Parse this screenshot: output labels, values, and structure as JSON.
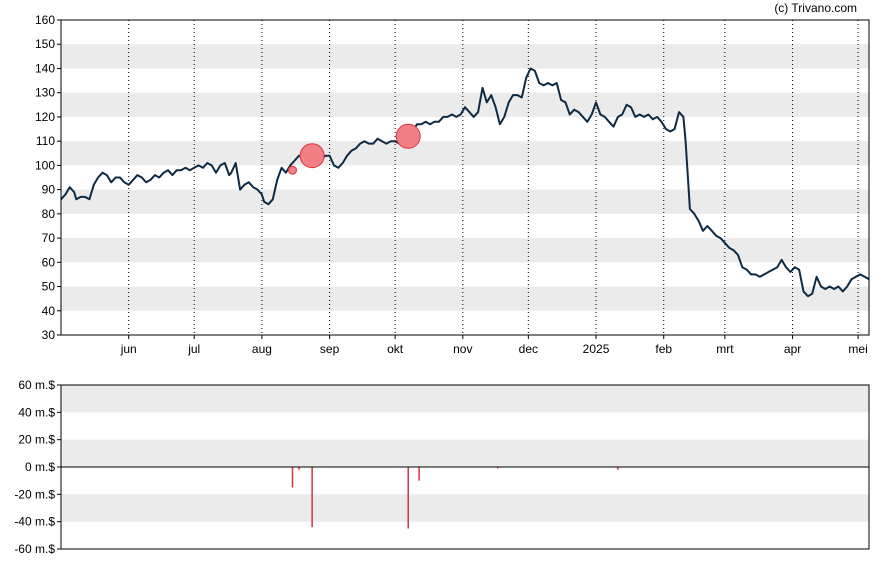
{
  "credit": "(c) Trivano.com",
  "colors": {
    "price_line": "#0d2b45",
    "marker_fill": "#f07f86",
    "marker_stroke": "#e0303a",
    "volume_bar": "#e0303a",
    "band": "#ebebeb",
    "frame": "#000000"
  },
  "chart_data": [
    {
      "type": "line",
      "title": "",
      "grid": true,
      "ylim": [
        30,
        160
      ],
      "yticks": [
        "30",
        "40",
        "50",
        "60",
        "70",
        "80",
        "90",
        "100",
        "110",
        "120",
        "130",
        "140",
        "150",
        "160"
      ],
      "months": [
        {
          "label": "jun",
          "day": 31
        },
        {
          "label": "jul",
          "day": 61
        },
        {
          "label": "aug",
          "day": 92
        },
        {
          "label": "sep",
          "day": 123
        },
        {
          "label": "okt",
          "day": 153
        },
        {
          "label": "nov",
          "day": 184
        },
        {
          "label": "dec",
          "day": 214
        },
        {
          "label": "2025",
          "day": 245
        },
        {
          "label": "feb",
          "day": 276
        },
        {
          "label": "mrt",
          "day": 304
        },
        {
          "label": "apr",
          "day": 335
        },
        {
          "label": "mei",
          "day": 365
        }
      ],
      "series": [
        {
          "points": [
            [
              0,
              86
            ],
            [
              2,
              88
            ],
            [
              4,
              91
            ],
            [
              6,
              89
            ],
            [
              7,
              86
            ],
            [
              9,
              87
            ],
            [
              11,
              87
            ],
            [
              13,
              86
            ],
            [
              15,
              92
            ],
            [
              17,
              95
            ],
            [
              19,
              97
            ],
            [
              21,
              96
            ],
            [
              23,
              93
            ],
            [
              25,
              95
            ],
            [
              27,
              95
            ],
            [
              29,
              93
            ],
            [
              31,
              92
            ],
            [
              33,
              94
            ],
            [
              35,
              96
            ],
            [
              37,
              95
            ],
            [
              39,
              93
            ],
            [
              41,
              94
            ],
            [
              43,
              96
            ],
            [
              45,
              95
            ],
            [
              47,
              97
            ],
            [
              49,
              98
            ],
            [
              51,
              96
            ],
            [
              53,
              98
            ],
            [
              55,
              98
            ],
            [
              57,
              99
            ],
            [
              59,
              98
            ],
            [
              61,
              99
            ],
            [
              63,
              100
            ],
            [
              65,
              99
            ],
            [
              67,
              101
            ],
            [
              69,
              100
            ],
            [
              71,
              97
            ],
            [
              73,
              100
            ],
            [
              75,
              101
            ],
            [
              77,
              96
            ],
            [
              78,
              97
            ],
            [
              80,
              101
            ],
            [
              82,
              90
            ],
            [
              84,
              92
            ],
            [
              86,
              93
            ],
            [
              88,
              91
            ],
            [
              90,
              90
            ],
            [
              92,
              88
            ],
            [
              93,
              85
            ],
            [
              95,
              84
            ],
            [
              97,
              86
            ],
            [
              99,
              94
            ],
            [
              101,
              99
            ],
            [
              103,
              97
            ],
            [
              105,
              100
            ],
            [
              107,
              102
            ],
            [
              109,
              104
            ],
            [
              111,
              103
            ],
            [
              113,
              105
            ],
            [
              115,
              104
            ],
            [
              117,
              103
            ],
            [
              119,
              102
            ],
            [
              121,
              104
            ],
            [
              123,
              104
            ],
            [
              125,
              100
            ],
            [
              127,
              99
            ],
            [
              129,
              101
            ],
            [
              131,
              104
            ],
            [
              133,
              106
            ],
            [
              135,
              107
            ],
            [
              137,
              109
            ],
            [
              139,
              110
            ],
            [
              141,
              109
            ],
            [
              143,
              109
            ],
            [
              145,
              111
            ],
            [
              147,
              110
            ],
            [
              149,
              109
            ],
            [
              151,
              110
            ],
            [
              153,
              110
            ],
            [
              155,
              109
            ],
            [
              157,
              112
            ],
            [
              159,
              113
            ],
            [
              161,
              114
            ],
            [
              163,
              117
            ],
            [
              165,
              117
            ],
            [
              167,
              118
            ],
            [
              169,
              117
            ],
            [
              171,
              118
            ],
            [
              173,
              118
            ],
            [
              175,
              120
            ],
            [
              177,
              120
            ],
            [
              179,
              121
            ],
            [
              181,
              120
            ],
            [
              183,
              121
            ],
            [
              185,
              124
            ],
            [
              187,
              122
            ],
            [
              189,
              120
            ],
            [
              191,
              122
            ],
            [
              193,
              132
            ],
            [
              195,
              126
            ],
            [
              197,
              129
            ],
            [
              199,
              124
            ],
            [
              201,
              117
            ],
            [
              203,
              120
            ],
            [
              205,
              126
            ],
            [
              207,
              129
            ],
            [
              209,
              129
            ],
            [
              211,
              128
            ],
            [
              213,
              136
            ],
            [
              215,
              140
            ],
            [
              217,
              139
            ],
            [
              219,
              134
            ],
            [
              221,
              133
            ],
            [
              223,
              134
            ],
            [
              225,
              133
            ],
            [
              227,
              134
            ],
            [
              229,
              127
            ],
            [
              231,
              126
            ],
            [
              233,
              121
            ],
            [
              235,
              123
            ],
            [
              237,
              122
            ],
            [
              239,
              120
            ],
            [
              241,
              118
            ],
            [
              243,
              121
            ],
            [
              245,
              126
            ],
            [
              247,
              121
            ],
            [
              249,
              120
            ],
            [
              251,
              118
            ],
            [
              253,
              116
            ],
            [
              255,
              120
            ],
            [
              257,
              121
            ],
            [
              259,
              125
            ],
            [
              261,
              124
            ],
            [
              263,
              120
            ],
            [
              265,
              121
            ],
            [
              267,
              120
            ],
            [
              269,
              121
            ],
            [
              271,
              119
            ],
            [
              273,
              120
            ],
            [
              275,
              118
            ],
            [
              277,
              115
            ],
            [
              279,
              114
            ],
            [
              281,
              115
            ],
            [
              283,
              122
            ],
            [
              285,
              120
            ],
            [
              286,
              110
            ],
            [
              288,
              82
            ],
            [
              290,
              80
            ],
            [
              292,
              77
            ],
            [
              294,
              73
            ],
            [
              296,
              75
            ],
            [
              298,
              73
            ],
            [
              300,
              71
            ],
            [
              302,
              70
            ],
            [
              304,
              68
            ],
            [
              306,
              66
            ],
            [
              308,
              65
            ],
            [
              310,
              63
            ],
            [
              312,
              58
            ],
            [
              314,
              57
            ],
            [
              316,
              55
            ],
            [
              318,
              55
            ],
            [
              320,
              54
            ],
            [
              322,
              55
            ],
            [
              324,
              56
            ],
            [
              326,
              57
            ],
            [
              328,
              58
            ],
            [
              330,
              61
            ],
            [
              332,
              58
            ],
            [
              334,
              56
            ],
            [
              336,
              58
            ],
            [
              338,
              57
            ],
            [
              340,
              48
            ],
            [
              342,
              46
            ],
            [
              344,
              47
            ],
            [
              346,
              54
            ],
            [
              348,
              50
            ],
            [
              350,
              49
            ],
            [
              352,
              50
            ],
            [
              354,
              49
            ],
            [
              356,
              50
            ],
            [
              358,
              48
            ],
            [
              360,
              50
            ],
            [
              362,
              53
            ],
            [
              364,
              54
            ],
            [
              366,
              55
            ],
            [
              368,
              54
            ],
            [
              370,
              53
            ]
          ]
        }
      ],
      "markers": [
        {
          "x": 106,
          "y": 98,
          "size": "small"
        },
        {
          "x": 115,
          "y": 104,
          "size": "large"
        },
        {
          "x": 159,
          "y": 112,
          "size": "large"
        }
      ]
    },
    {
      "type": "bar",
      "ylim": [
        -60,
        60
      ],
      "yticks": [
        "60 m.$",
        "40 m.$",
        "20 m.$",
        "0 m.$",
        "-20 m.$",
        "-40 m.$",
        "-60 m.$"
      ],
      "bars": [
        {
          "x": 106,
          "value": -15
        },
        {
          "x": 109,
          "value": -2
        },
        {
          "x": 115,
          "value": -44
        },
        {
          "x": 159,
          "value": -45
        },
        {
          "x": 164,
          "value": -10
        },
        {
          "x": 200,
          "value": -1
        },
        {
          "x": 255,
          "value": -2
        }
      ]
    }
  ]
}
